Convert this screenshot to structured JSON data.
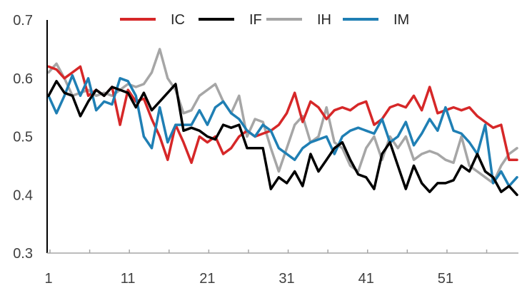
{
  "chart_data": {
    "type": "line",
    "title": "",
    "xlabel": "",
    "ylabel": "",
    "ylim": [
      0.3,
      0.7
    ],
    "yticks": [
      "0.3",
      "0.4",
      "0.5",
      "0.6",
      "0.7"
    ],
    "xticks": [
      "1",
      "11",
      "21",
      "31",
      "41",
      "51"
    ],
    "xlim": [
      1,
      60
    ],
    "grid": false,
    "legend_position": "top",
    "x": [
      1,
      2,
      3,
      4,
      5,
      6,
      7,
      8,
      9,
      10,
      11,
      12,
      13,
      14,
      15,
      16,
      17,
      18,
      19,
      20,
      21,
      22,
      23,
      24,
      25,
      26,
      27,
      28,
      29,
      30,
      31,
      32,
      33,
      34,
      35,
      36,
      37,
      38,
      39,
      40,
      41,
      42,
      43,
      44,
      45,
      46,
      47,
      48,
      49,
      50,
      51,
      52,
      53,
      54,
      55,
      56,
      57,
      58,
      59,
      60
    ],
    "series": [
      {
        "name": "IC",
        "color": "#d62728",
        "values": [
          0.62,
          0.615,
          0.6,
          0.61,
          0.62,
          0.57,
          0.58,
          0.57,
          0.585,
          0.52,
          0.58,
          0.56,
          0.565,
          0.53,
          0.5,
          0.46,
          0.52,
          0.49,
          0.455,
          0.5,
          0.49,
          0.5,
          0.47,
          0.48,
          0.5,
          0.51,
          0.5,
          0.505,
          0.51,
          0.52,
          0.54,
          0.575,
          0.525,
          0.56,
          0.55,
          0.53,
          0.545,
          0.55,
          0.545,
          0.555,
          0.56,
          0.52,
          0.53,
          0.55,
          0.555,
          0.55,
          0.57,
          0.545,
          0.585,
          0.54,
          0.545,
          0.55,
          0.545,
          0.55,
          0.535,
          0.525,
          0.515,
          0.52,
          0.46,
          0.46
        ]
      },
      {
        "name": "IF",
        "color": "#000000",
        "values": [
          0.57,
          0.595,
          0.575,
          0.57,
          0.535,
          0.56,
          0.58,
          0.57,
          0.585,
          0.58,
          0.575,
          0.55,
          0.575,
          0.545,
          0.56,
          0.575,
          0.59,
          0.51,
          0.515,
          0.51,
          0.5,
          0.495,
          0.52,
          0.515,
          0.52,
          0.48,
          0.48,
          0.48,
          0.41,
          0.43,
          0.42,
          0.44,
          0.415,
          0.47,
          0.44,
          0.46,
          0.48,
          0.49,
          0.46,
          0.435,
          0.43,
          0.41,
          0.47,
          0.49,
          0.45,
          0.41,
          0.45,
          0.42,
          0.405,
          0.42,
          0.42,
          0.425,
          0.45,
          0.44,
          0.47,
          0.44,
          0.43,
          0.405,
          0.415,
          0.4
        ]
      },
      {
        "name": "IH",
        "color": "#a6a6a6",
        "values": [
          0.61,
          0.625,
          0.6,
          0.57,
          0.575,
          0.58,
          0.57,
          0.575,
          0.57,
          0.58,
          0.59,
          0.585,
          0.59,
          0.61,
          0.65,
          0.6,
          0.58,
          0.54,
          0.545,
          0.57,
          0.58,
          0.59,
          0.56,
          0.54,
          0.57,
          0.5,
          0.53,
          0.525,
          0.48,
          0.44,
          0.48,
          0.52,
          0.535,
          0.49,
          0.5,
          0.55,
          0.49,
          0.48,
          0.45,
          0.44,
          0.48,
          0.5,
          0.46,
          0.5,
          0.48,
          0.5,
          0.46,
          0.47,
          0.475,
          0.47,
          0.46,
          0.455,
          0.5,
          0.45,
          0.44,
          0.43,
          0.42,
          0.45,
          0.47,
          0.48
        ]
      },
      {
        "name": "IM",
        "color": "#1f7fb4",
        "values": [
          0.57,
          0.54,
          0.57,
          0.605,
          0.57,
          0.6,
          0.545,
          0.56,
          0.555,
          0.6,
          0.595,
          0.57,
          0.5,
          0.48,
          0.55,
          0.49,
          0.52,
          0.52,
          0.52,
          0.545,
          0.52,
          0.55,
          0.56,
          0.54,
          0.53,
          0.51,
          0.5,
          0.52,
          0.51,
          0.48,
          0.47,
          0.46,
          0.48,
          0.49,
          0.495,
          0.5,
          0.47,
          0.5,
          0.51,
          0.515,
          0.51,
          0.505,
          0.53,
          0.49,
          0.5,
          0.525,
          0.485,
          0.505,
          0.53,
          0.51,
          0.55,
          0.51,
          0.505,
          0.49,
          0.47,
          0.52,
          0.42,
          0.44,
          0.415,
          0.43
        ]
      }
    ]
  }
}
